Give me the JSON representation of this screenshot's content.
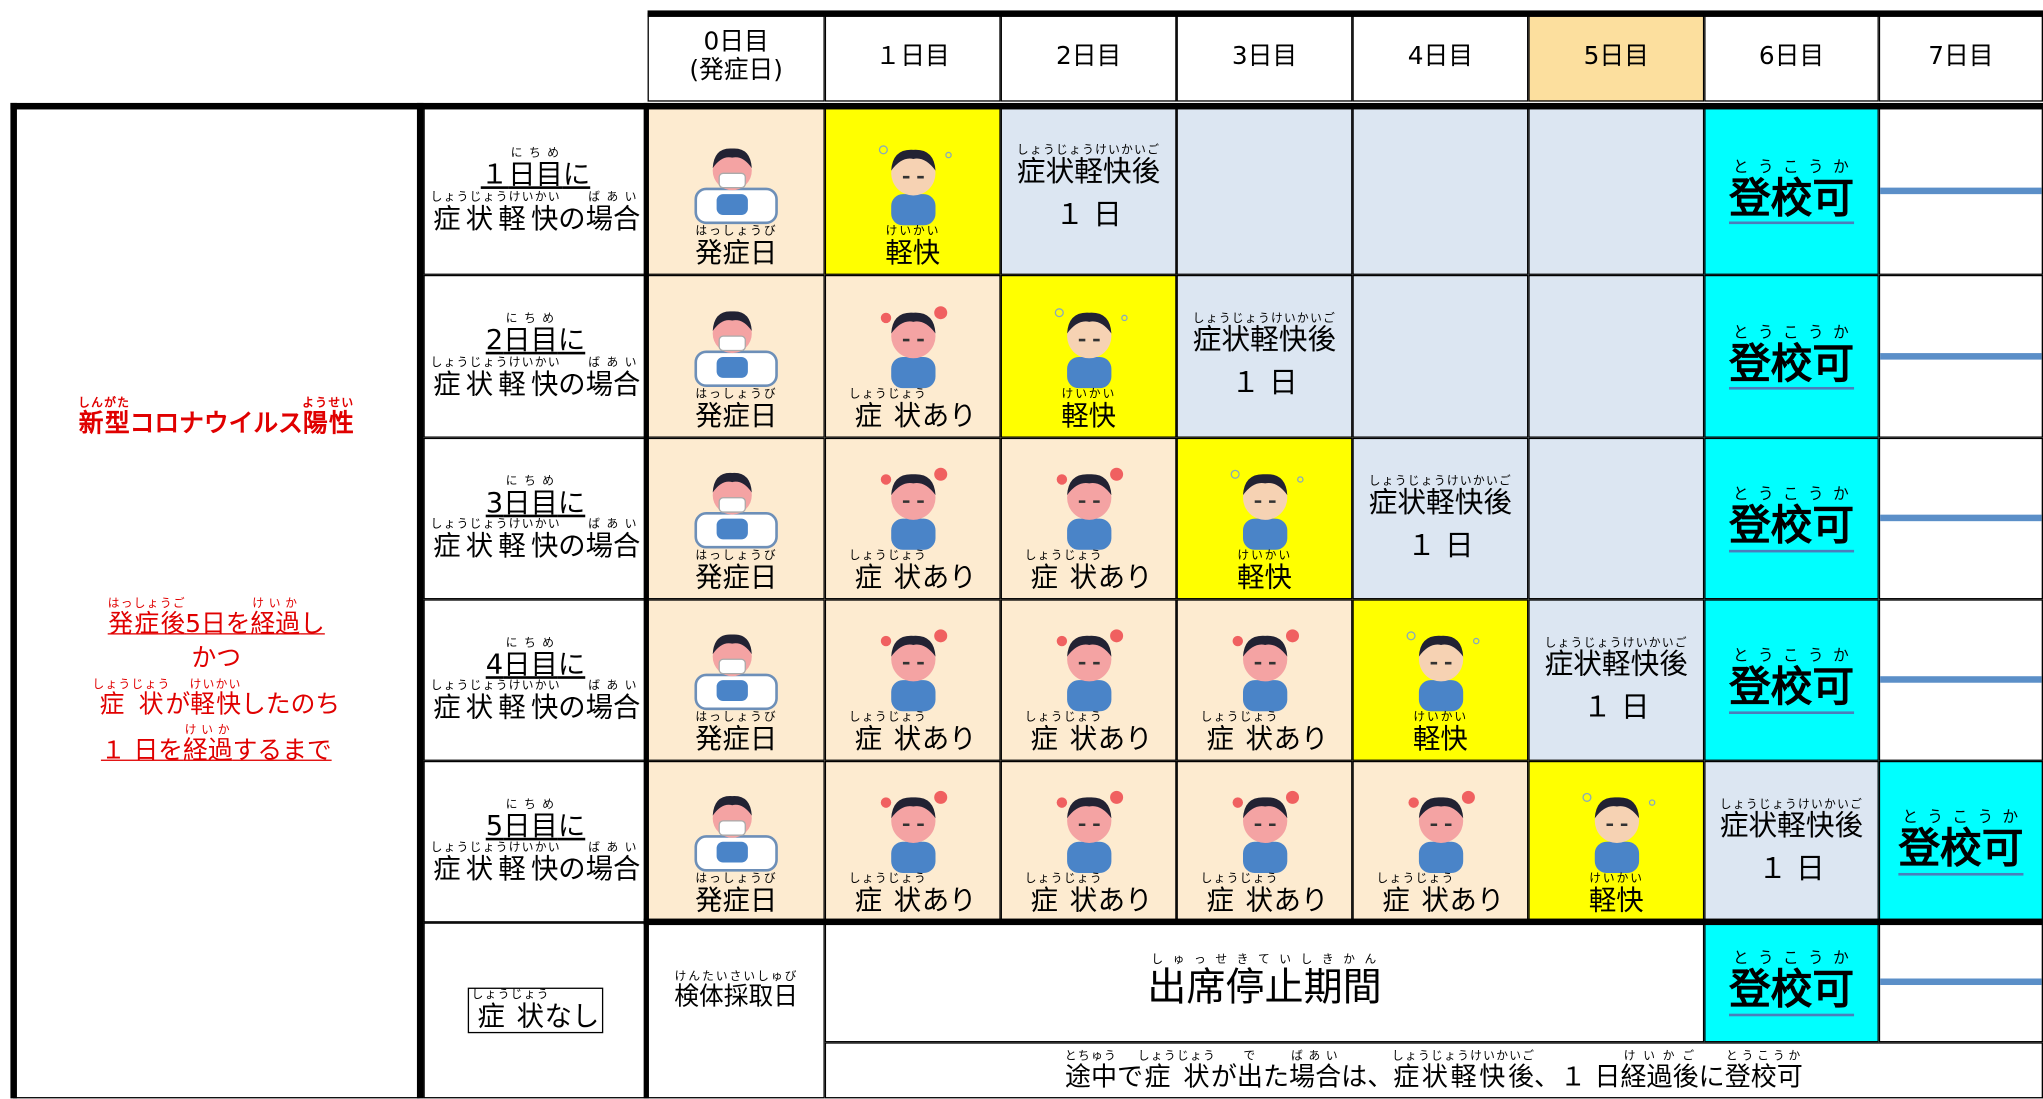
{
  "header": {
    "days": [
      {
        "text": [
          [
            "0日目"
          ],
          [
            "(発症日)"
          ]
        ],
        "color": "#ffffff"
      },
      {
        "text": [
          [
            "１日目"
          ]
        ],
        "color": "#ffffff"
      },
      {
        "text": [
          [
            "2日目"
          ]
        ],
        "color": "#ffffff"
      },
      {
        "text": [
          [
            "3日目"
          ]
        ],
        "color": "#ffffff"
      },
      {
        "text": [
          [
            "4日目"
          ]
        ],
        "color": "#ffffff"
      },
      {
        "text": [
          [
            "5日目"
          ]
        ],
        "color": "#fcdf9e"
      },
      {
        "text": [
          [
            "6日目"
          ]
        ],
        "color": "#ffffff"
      },
      {
        "text": [
          [
            "7日目"
          ]
        ],
        "color": "#ffffff"
      }
    ]
  },
  "left": {
    "title": [
      [
        [
          "新型",
          "しんがた"
        ],
        "コロナウイルス",
        [
          "陽性",
          "ようせい"
        ]
      ]
    ],
    "conditions": [
      [
        [
          "発症後",
          "はっしょうご"
        ],
        "5日を",
        [
          "経過",
          "けいか"
        ],
        "し"
      ],
      [
        "かつ"
      ],
      [
        [
          "症状",
          "しょうじょう"
        ],
        "が",
        [
          "軽快",
          "けいかい"
        ],
        "したのち"
      ],
      [
        "１ 日を",
        [
          "経過",
          "けいか"
        ],
        "するまで"
      ]
    ]
  },
  "rows": [
    {
      "label": [
        [
          "１",
          [
            "日目",
            "にちめ"
          ],
          "に"
        ],
        [
          [
            "症状軽快",
            "しょうじょうけいかい"
          ],
          "の",
          [
            "場合",
            "ばあい"
          ]
        ]
      ],
      "cells": [
        {
          "text": [
            [
              [
                "発症日",
                "はっしょうび"
              ]
            ]
          ],
          "color": "#fdebd0"
        },
        {
          "text": [
            [
              [
                "軽快",
                "けいかい"
              ]
            ]
          ],
          "color": "#ffff00"
        },
        {
          "text": [
            [
              [
                "症状軽快後",
                "しょうじょうけいかいご"
              ]
            ],
            [
              "１ 日"
            ]
          ],
          "color": "#dce6f2"
        },
        {
          "color": "#dce6f2"
        },
        {
          "color": "#dce6f2"
        },
        {
          "color": "#dce6f2"
        },
        {
          "text": [
            [
              [
                "登校可",
                "とうこうか"
              ]
            ]
          ],
          "color": "#00ffff"
        },
        {
          "color": "#ffffff"
        }
      ]
    },
    {
      "label": [
        [
          "2",
          [
            "日目",
            "にちめ"
          ],
          "に"
        ],
        [
          [
            "症状軽快",
            "しょうじょうけいかい"
          ],
          "の",
          [
            "場合",
            "ばあい"
          ]
        ]
      ],
      "cells": [
        {
          "text": [
            [
              [
                "発症日",
                "はっしょうび"
              ]
            ]
          ],
          "color": "#fdebd0"
        },
        {
          "text": [
            [
              [
                "症状",
                "しょうじょう"
              ],
              "あり"
            ]
          ],
          "color": "#fdebd0"
        },
        {
          "text": [
            [
              [
                "軽快",
                "けいかい"
              ]
            ]
          ],
          "color": "#ffff00"
        },
        {
          "text": [
            [
              [
                "症状軽快後",
                "しょうじょうけいかいご"
              ]
            ],
            [
              "１ 日"
            ]
          ],
          "color": "#dce6f2"
        },
        {
          "color": "#dce6f2"
        },
        {
          "color": "#dce6f2"
        },
        {
          "text": [
            [
              [
                "登校可",
                "とうこうか"
              ]
            ]
          ],
          "color": "#00ffff"
        },
        {
          "color": "#ffffff"
        }
      ]
    },
    {
      "label": [
        [
          "3",
          [
            "日目",
            "にちめ"
          ],
          "に"
        ],
        [
          [
            "症状軽快",
            "しょうじょうけいかい"
          ],
          "の",
          [
            "場合",
            "ばあい"
          ]
        ]
      ],
      "cells": [
        {
          "text": [
            [
              [
                "発症日",
                "はっしょうび"
              ]
            ]
          ],
          "color": "#fdebd0"
        },
        {
          "text": [
            [
              [
                "症状",
                "しょうじょう"
              ],
              "あり"
            ]
          ],
          "color": "#fdebd0"
        },
        {
          "text": [
            [
              [
                "症状",
                "しょうじょう"
              ],
              "あり"
            ]
          ],
          "color": "#fdebd0"
        },
        {
          "text": [
            [
              [
                "軽快",
                "けいかい"
              ]
            ]
          ],
          "color": "#ffff00"
        },
        {
          "text": [
            [
              [
                "症状軽快後",
                "しょうじょうけいかいご"
              ]
            ],
            [
              "１ 日"
            ]
          ],
          "color": "#dce6f2"
        },
        {
          "color": "#dce6f2"
        },
        {
          "text": [
            [
              [
                "登校可",
                "とうこうか"
              ]
            ]
          ],
          "color": "#00ffff"
        },
        {
          "color": "#ffffff"
        }
      ]
    },
    {
      "label": [
        [
          "4",
          [
            "日目",
            "にちめ"
          ],
          "に"
        ],
        [
          [
            "症状軽快",
            "しょうじょうけいかい"
          ],
          "の",
          [
            "場合",
            "ばあい"
          ]
        ]
      ],
      "cells": [
        {
          "text": [
            [
              [
                "発症日",
                "はっしょうび"
              ]
            ]
          ],
          "color": "#fdebd0"
        },
        {
          "text": [
            [
              [
                "症状",
                "しょうじょう"
              ],
              "あり"
            ]
          ],
          "color": "#fdebd0"
        },
        {
          "text": [
            [
              [
                "症状",
                "しょうじょう"
              ],
              "あり"
            ]
          ],
          "color": "#fdebd0"
        },
        {
          "text": [
            [
              [
                "症状",
                "しょうじょう"
              ],
              "あり"
            ]
          ],
          "color": "#fdebd0"
        },
        {
          "text": [
            [
              [
                "軽快",
                "けいかい"
              ]
            ]
          ],
          "color": "#ffff00"
        },
        {
          "text": [
            [
              [
                "症状軽快後",
                "しょうじょうけいかいご"
              ]
            ],
            [
              "１ 日"
            ]
          ],
          "color": "#dce6f2"
        },
        {
          "text": [
            [
              [
                "登校可",
                "とうこうか"
              ]
            ]
          ],
          "color": "#00ffff"
        },
        {
          "color": "#ffffff"
        }
      ]
    },
    {
      "label": [
        [
          "5",
          [
            "日目",
            "にちめ"
          ],
          "に"
        ],
        [
          [
            "症状軽快",
            "しょうじょうけいかい"
          ],
          "の",
          [
            "場合",
            "ばあい"
          ]
        ]
      ],
      "cells": [
        {
          "text": [
            [
              [
                "発症日",
                "はっしょうび"
              ]
            ]
          ],
          "color": "#fdebd0"
        },
        {
          "text": [
            [
              [
                "症状",
                "しょうじょう"
              ],
              "あり"
            ]
          ],
          "color": "#fdebd0"
        },
        {
          "text": [
            [
              [
                "症状",
                "しょうじょう"
              ],
              "あり"
            ]
          ],
          "color": "#fdebd0"
        },
        {
          "text": [
            [
              [
                "症状",
                "しょうじょう"
              ],
              "あり"
            ]
          ],
          "color": "#fdebd0"
        },
        {
          "text": [
            [
              [
                "症状",
                "しょうじょう"
              ],
              "あり"
            ]
          ],
          "color": "#fdebd0"
        },
        {
          "text": [
            [
              [
                "軽快",
                "けいかい"
              ]
            ]
          ],
          "color": "#ffff00"
        },
        {
          "text": [
            [
              [
                "症状軽快後",
                "しょうじょうけいかいご"
              ]
            ],
            [
              "１ 日"
            ]
          ],
          "color": "#dce6f2"
        },
        {
          "text": [
            [
              [
                "登校可",
                "とうこうか"
              ]
            ]
          ],
          "color": "#00ffff"
        }
      ]
    }
  ],
  "no_symptom": {
    "label": [
      [
        [
          "症状",
          "しょうじょう"
        ],
        "なし"
      ]
    ],
    "sample_day": [
      [
        [
          "検体採取日",
          "けんたいさいしゅび"
        ]
      ]
    ],
    "period": [
      [
        [
          "出席停止期間",
          "しゅっせきていしきかん"
        ]
      ]
    ],
    "ok": [
      [
        [
          "登校可",
          "とうこうか"
        ]
      ]
    ],
    "ok_color": "#00ffff",
    "note": [
      [
        [
          "途中",
          "とちゅう"
        ],
        "で",
        [
          "症状",
          "しょうじょう"
        ],
        "が",
        [
          "出",
          "で"
        ],
        "た",
        [
          "場合",
          "ばあい"
        ],
        "は、",
        [
          "症状軽快後",
          "しょうじょうけいかいご"
        ],
        "、１ 日",
        [
          "経過後",
          "けいかご"
        ],
        "に",
        [
          "登校可",
          "とうこうか"
        ]
      ]
    ]
  }
}
